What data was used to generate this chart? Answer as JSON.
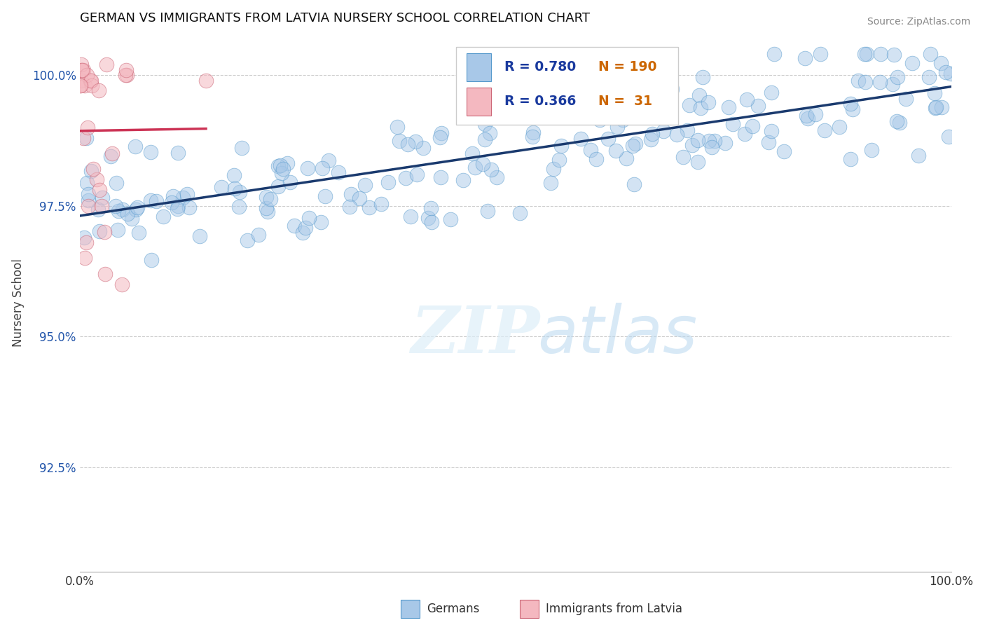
{
  "title": "GERMAN VS IMMIGRANTS FROM LATVIA NURSERY SCHOOL CORRELATION CHART",
  "source": "Source: ZipAtlas.com",
  "ylabel": "Nursery School",
  "watermark_zip": "ZIP",
  "watermark_atlas": "atlas",
  "german_R": 0.78,
  "german_N": 190,
  "latvia_R": 0.366,
  "latvia_N": 31,
  "german_color": "#a8c8e8",
  "german_edge": "#5599cc",
  "latvia_color": "#f4b8c0",
  "latvia_edge": "#cc6677",
  "trend_blue": "#1a3a6e",
  "trend_pink": "#cc3355",
  "background_color": "#ffffff",
  "grid_color": "#cccccc",
  "title_fontsize": 13,
  "legend_r_color": "#1a3a9e",
  "legend_n_color": "#cc6600",
  "ytick_color": "#2255aa",
  "xmin": 0.0,
  "xmax": 1.0,
  "ymin": 0.905,
  "ymax": 1.008,
  "yticks": [
    0.925,
    0.95,
    0.975,
    1.0
  ],
  "ytick_labels": [
    "92.5%",
    "95.0%",
    "97.5%",
    "100.0%"
  ]
}
